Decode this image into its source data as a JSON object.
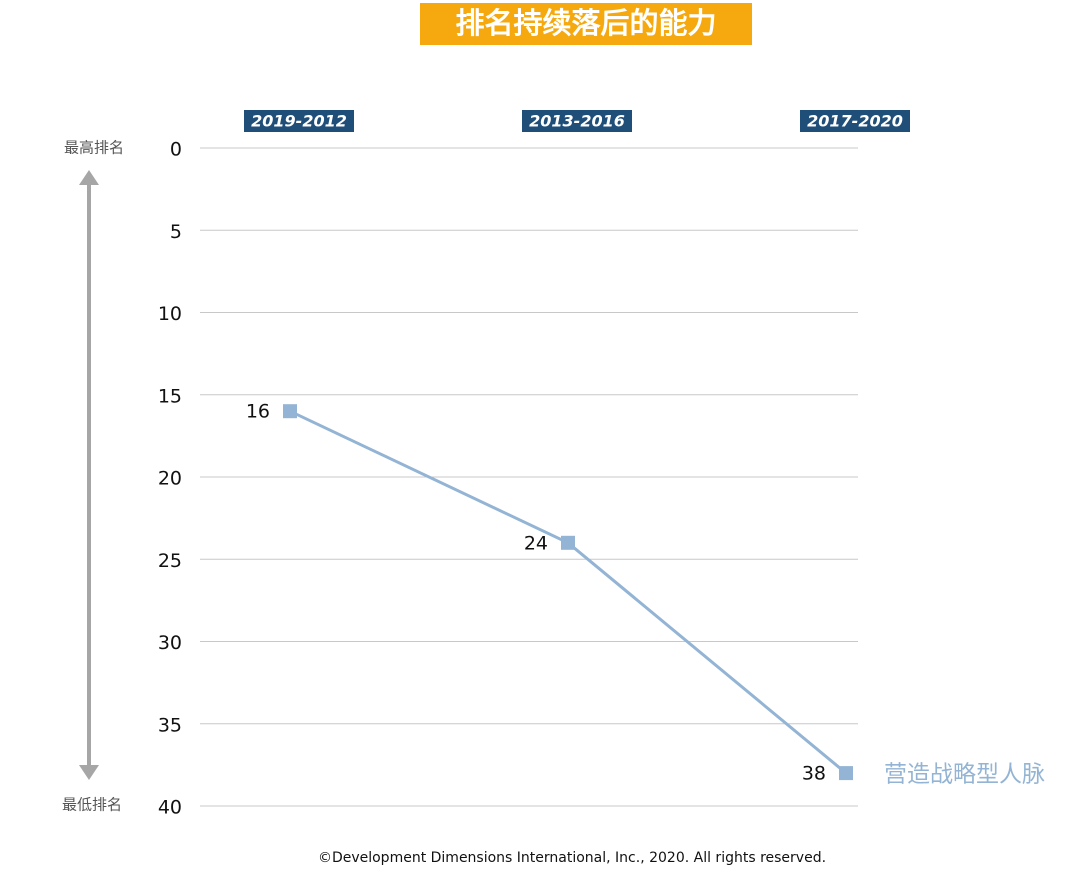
{
  "chart_data": {
    "type": "line",
    "title": "排名持续落后的能力",
    "categories": [
      "2019-2012",
      "2013-2016",
      "2017-2020"
    ],
    "series": [
      {
        "name": "营造战略型人脉",
        "color": "#93b4d4",
        "values": [
          16,
          24,
          38
        ]
      }
    ],
    "ylim": [
      0,
      40
    ],
    "y_reversed": true,
    "yticks": [
      0,
      5,
      10,
      15,
      20,
      25,
      30,
      35,
      40
    ],
    "grid": true,
    "annotations": {
      "top": "最高排名",
      "bottom": "最低排名"
    },
    "footer": "©Development Dimensions International, Inc., 2020. All rights reserved."
  }
}
